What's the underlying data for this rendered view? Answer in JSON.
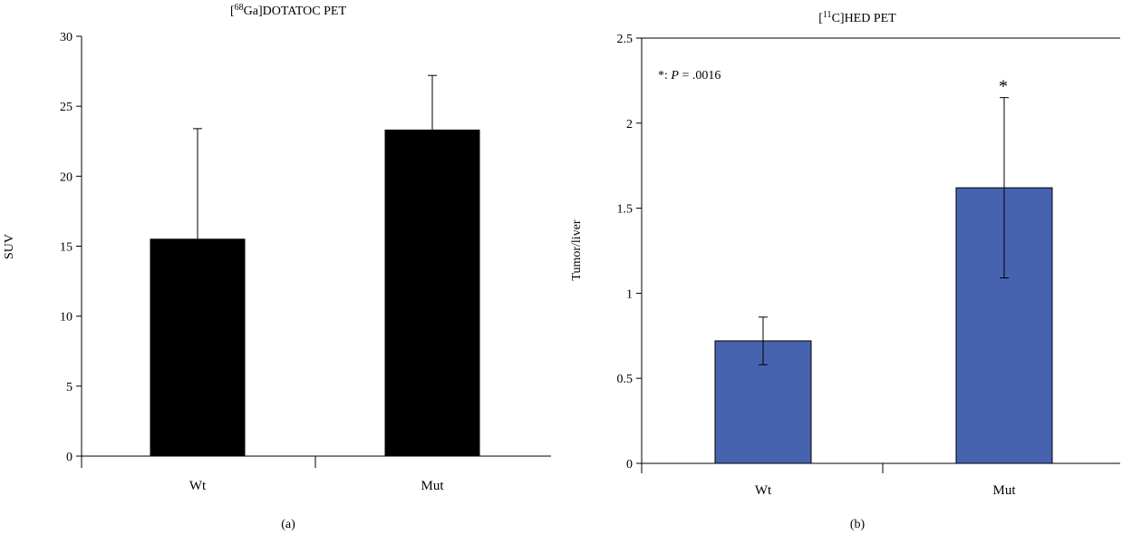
{
  "colors": {
    "panel_a_bar": "#000000",
    "panel_b_bar": "#4763b0",
    "axis": "#000000"
  },
  "chart_data": [
    {
      "type": "bar",
      "panel_label": "(a)",
      "title_prefix": "[",
      "title_sup": "68",
      "title_suffix": "Ga]DOTATOC PET",
      "xlabel": "",
      "ylabel": "SUV",
      "ylim": [
        0,
        30
      ],
      "yticks": [
        0,
        5,
        10,
        15,
        20,
        25,
        30
      ],
      "ytick_labels": [
        "0",
        "5",
        "10",
        "15",
        "20",
        "25",
        "30"
      ],
      "categories": [
        "Wt",
        "Mut"
      ],
      "values": [
        15.5,
        23.3
      ],
      "errors": [
        7.9,
        3.9
      ],
      "grid": false,
      "legend": "none"
    },
    {
      "type": "bar",
      "panel_label": "(b)",
      "title_prefix": "[",
      "title_sup": "11",
      "title_suffix": "C]HED PET",
      "xlabel": "",
      "ylabel": "Tumor/liver",
      "ylim": [
        0,
        2.5
      ],
      "yticks": [
        0,
        0.5,
        1,
        1.5,
        2,
        2.5
      ],
      "ytick_labels": [
        "0",
        "0.5",
        "1",
        "1.5",
        "2",
        "2.5"
      ],
      "categories": [
        "Wt",
        "Mut"
      ],
      "values": [
        0.72,
        1.62
      ],
      "errors": [
        0.14,
        0.53
      ],
      "significance_markers": [
        "",
        "*"
      ],
      "annotation_prefix": "*: ",
      "annotation_italic": "P",
      "annotation_suffix": " = .0016",
      "grid": false,
      "legend": "none"
    }
  ]
}
